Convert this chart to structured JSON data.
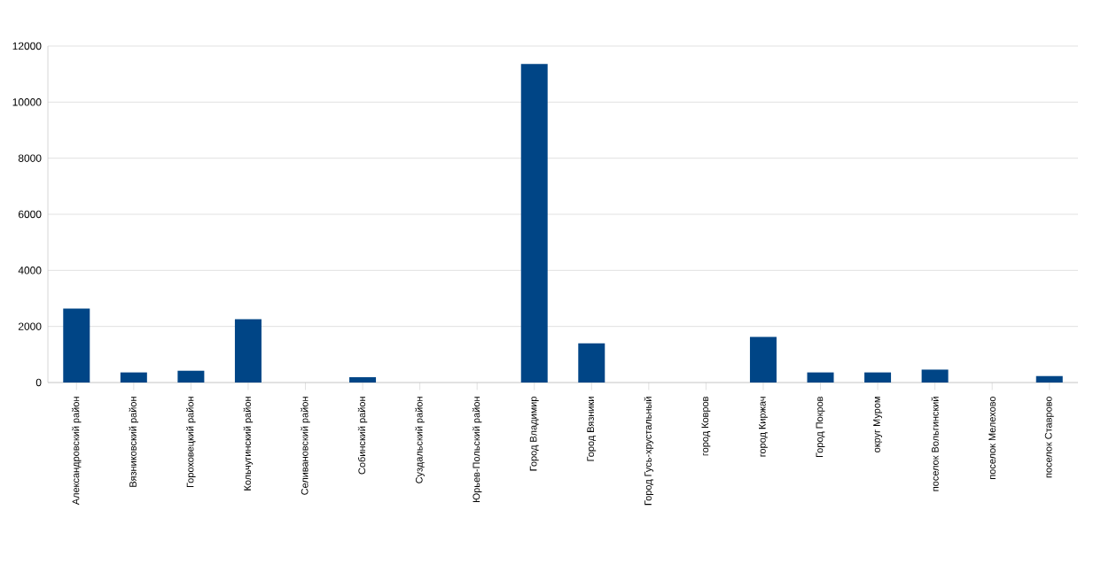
{
  "chart_data": {
    "type": "bar",
    "categories": [
      "Александровский район",
      "Вязниковский район",
      "Гороховецкий район",
      "Кольчугинский район",
      "Селивановский район",
      "Собинский район",
      "Суздальский район",
      "Юрьев-Польский район",
      "Город Владимир",
      "Город Вязники",
      "Город Гусь-хрустальный",
      "город Ковров",
      "город Киржач",
      "Город Покров",
      "округ Муром",
      "поселок Вольгинский",
      "поселок Мелехово",
      "поселок Ставрово"
    ],
    "values": [
      2640,
      360,
      420,
      2260,
      0,
      190,
      0,
      0,
      11360,
      1400,
      0,
      0,
      1630,
      360,
      360,
      460,
      0,
      230
    ],
    "color": "#004586",
    "ylim": [
      0,
      12000
    ],
    "yticks": [
      0,
      2000,
      4000,
      6000,
      8000,
      10000,
      12000
    ],
    "grid": "y"
  }
}
